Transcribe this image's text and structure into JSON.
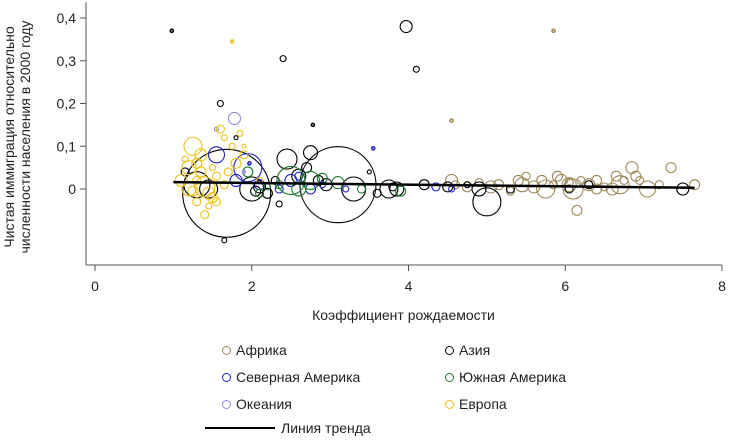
{
  "chart_data": {
    "type": "scatter",
    "xlabel": "Коэффициент рождаемости",
    "ylabel_lines": [
      "Чистая иммиграция относительно",
      "численности населения в 2000 году"
    ],
    "xlim": [
      0,
      8
    ],
    "ylim": [
      -0.14,
      0.42
    ],
    "x_ticks": [
      0,
      2,
      4,
      6,
      8
    ],
    "x_tick_labels": [
      "0",
      "2",
      "4",
      "6",
      "8"
    ],
    "y_ticks": [
      0,
      0.1,
      0.2,
      0.3,
      0.4
    ],
    "y_tick_labels": [
      "0",
      "0,1",
      "0,2",
      "0,3",
      "0,4"
    ],
    "grid": false,
    "legend_position": "bottom",
    "series": [
      {
        "name": "Африка",
        "color": "#9c8758",
        "points": [
          [
            4.55,
            0.02
          ],
          [
            4.6,
            0.01
          ],
          [
            4.75,
            0.005
          ],
          [
            4.9,
            0.015
          ],
          [
            5.05,
            0.005
          ],
          [
            5.15,
            0.01
          ],
          [
            5.3,
            -0.005
          ],
          [
            5.4,
            0.02
          ],
          [
            5.45,
            0.01
          ],
          [
            5.5,
            0.03
          ],
          [
            5.6,
            0.005
          ],
          [
            5.7,
            0.02
          ],
          [
            5.75,
            0.0
          ],
          [
            5.85,
            0.01
          ],
          [
            5.9,
            0.03
          ],
          [
            5.95,
            0.02
          ],
          [
            6.05,
            0.01
          ],
          [
            6.1,
            0.0
          ],
          [
            6.15,
            -0.05
          ],
          [
            6.2,
            0.02
          ],
          [
            6.3,
            0.01
          ],
          [
            6.4,
            0.02
          ],
          [
            6.5,
            0.005
          ],
          [
            6.6,
            0.0
          ],
          [
            6.65,
            0.03
          ],
          [
            6.7,
            0.01
          ],
          [
            6.75,
            0.02
          ],
          [
            6.85,
            0.05
          ],
          [
            6.9,
            0.03
          ],
          [
            6.95,
            0.02
          ],
          [
            7.05,
            0.0
          ],
          [
            7.2,
            0.01
          ],
          [
            7.35,
            0.05
          ],
          [
            7.5,
            0.0
          ],
          [
            7.65,
            0.01
          ],
          [
            5.85,
            0.37
          ],
          [
            4.55,
            0.16
          ],
          [
            6.05,
            0.015
          ],
          [
            6.4,
            0.0
          ]
        ],
        "sizes": [
          6,
          4,
          5,
          4,
          6,
          5,
          4,
          5,
          7,
          4,
          6,
          5,
          9,
          4,
          5,
          6,
          7,
          10,
          5,
          4,
          6,
          5,
          4,
          6,
          5,
          9,
          4,
          6,
          5,
          4,
          8,
          4,
          5,
          6,
          5,
          1.5,
          1.5,
          4,
          5
        ]
      },
      {
        "name": "Азия",
        "color": "#000000",
        "points": [
          [
            0.98,
            0.37
          ],
          [
            1.15,
            0.04
          ],
          [
            1.3,
            0.01
          ],
          [
            1.45,
            0.0
          ],
          [
            1.6,
            0.2
          ],
          [
            1.65,
            -0.12
          ],
          [
            1.8,
            0.12
          ],
          [
            1.68,
            -0.01
          ],
          [
            2.0,
            0.0
          ],
          [
            2.1,
            0.005
          ],
          [
            2.2,
            -0.01
          ],
          [
            2.3,
            0.02
          ],
          [
            2.4,
            0.305
          ],
          [
            2.45,
            0.07
          ],
          [
            2.6,
            0.03
          ],
          [
            2.7,
            0.05
          ],
          [
            2.75,
            0.085
          ],
          [
            2.78,
            0.15
          ],
          [
            2.85,
            0.02
          ],
          [
            2.95,
            0.01
          ],
          [
            3.1,
            0.01
          ],
          [
            3.3,
            0.0
          ],
          [
            3.5,
            0.04
          ],
          [
            3.6,
            -0.01
          ],
          [
            3.75,
            0.0
          ],
          [
            3.8,
            0.005
          ],
          [
            3.85,
            0.0
          ],
          [
            3.97,
            0.38
          ],
          [
            4.1,
            0.28
          ],
          [
            4.2,
            0.01
          ],
          [
            4.5,
            0.005
          ],
          [
            4.75,
            0.01
          ],
          [
            4.9,
            0.0
          ],
          [
            5.0,
            -0.03
          ],
          [
            5.3,
            0.0
          ],
          [
            6.05,
            0.0
          ],
          [
            6.3,
            0.01
          ],
          [
            7.5,
            0.0
          ],
          [
            2.05,
            -0.005
          ],
          [
            2.35,
            -0.035
          ]
        ],
        "sizes": [
          1.5,
          4,
          13,
          9,
          3,
          2.5,
          2,
          44,
          12,
          6,
          5,
          4,
          3,
          10,
          7,
          5,
          7,
          1.5,
          5,
          6,
          38,
          12,
          2,
          4,
          9,
          4,
          7,
          6,
          3,
          5,
          5,
          3,
          7,
          14,
          4,
          4,
          4,
          6,
          5,
          3
        ]
      },
      {
        "name": "Северная Америка",
        "color": "#1d20c7",
        "points": [
          [
            1.55,
            0.08
          ],
          [
            1.8,
            0.02
          ],
          [
            1.95,
            0.05
          ],
          [
            2.1,
            0.01
          ],
          [
            2.35,
            0.0
          ],
          [
            2.5,
            0.02
          ],
          [
            2.6,
            0.03
          ],
          [
            2.75,
            0.0
          ],
          [
            2.9,
            0.01
          ],
          [
            3.2,
            0.0
          ],
          [
            3.55,
            0.095
          ],
          [
            4.35,
            0.005
          ],
          [
            4.55,
            0.0
          ],
          [
            1.97,
            0.06
          ]
        ],
        "sizes": [
          8,
          6,
          14,
          5,
          4,
          6,
          4,
          5,
          3,
          3,
          1.5,
          4,
          3,
          1.5
        ]
      },
      {
        "name": "Южная Америка",
        "color": "#1a7a2a",
        "points": [
          [
            1.95,
            0.04
          ],
          [
            2.35,
            0.01
          ],
          [
            2.5,
            0.02
          ],
          [
            2.6,
            0.0
          ],
          [
            2.75,
            0.02
          ],
          [
            2.9,
            0.025
          ],
          [
            3.1,
            0.015
          ],
          [
            3.4,
            0.0
          ],
          [
            3.9,
            -0.005
          ],
          [
            2.2,
            0.005
          ],
          [
            2.1,
            -0.01
          ]
        ],
        "sizes": [
          5,
          4,
          14,
          7,
          9,
          5,
          6,
          4,
          5,
          3,
          4
        ]
      },
      {
        "name": "Океания",
        "color": "#8a8ad8",
        "points": [
          [
            1.78,
            0.165
          ],
          [
            1.9,
            0.04
          ],
          [
            1.55,
            0.14
          ]
        ],
        "sizes": [
          6,
          1.5,
          2
        ]
      },
      {
        "name": "Европа",
        "color": "#ecc118",
        "points": [
          [
            1.1,
            0.02
          ],
          [
            1.2,
            0.05
          ],
          [
            1.25,
            0.1
          ],
          [
            1.3,
            0.06
          ],
          [
            1.35,
            0.08
          ],
          [
            1.4,
            0.005
          ],
          [
            1.45,
            -0.01
          ],
          [
            1.5,
            -0.02
          ],
          [
            1.3,
            -0.03
          ],
          [
            1.25,
            -0.005
          ],
          [
            1.55,
            0.03
          ],
          [
            1.6,
            0.14
          ],
          [
            1.65,
            0.12
          ],
          [
            1.75,
            0.1
          ],
          [
            1.8,
            0.06
          ],
          [
            1.85,
            0.13
          ],
          [
            1.9,
            0.08
          ],
          [
            1.35,
            0.04
          ],
          [
            1.4,
            -0.06
          ],
          [
            1.15,
            0.07
          ],
          [
            1.2,
            0.0
          ],
          [
            1.3,
            0.02
          ],
          [
            1.75,
            0.345
          ],
          [
            1.7,
            0.04
          ],
          [
            1.5,
            0.05
          ],
          [
            1.9,
            0.1
          ],
          [
            1.55,
            -0.03
          ],
          [
            1.45,
            -0.04
          ],
          [
            1.65,
            0.01
          ],
          [
            2.1,
            0.02
          ]
        ],
        "sizes": [
          6,
          7,
          9,
          5,
          6,
          10,
          6,
          5,
          4,
          5,
          4,
          4,
          3,
          3,
          5,
          3,
          4,
          5,
          4,
          3,
          7,
          4,
          1.5,
          4,
          3,
          2,
          4,
          3,
          4,
          3
        ]
      }
    ],
    "trend_line": {
      "name": "Линия тренда",
      "color": "#000000",
      "x": [
        1.0,
        7.65
      ],
      "y": [
        0.016,
        0.003
      ]
    }
  },
  "legend": {
    "items": [
      {
        "label": "Африка",
        "color": "#9c8758"
      },
      {
        "label": "Азия",
        "color": "#000000"
      },
      {
        "label": "Северная Америка",
        "color": "#1d20c7"
      },
      {
        "label": "Южная Америка",
        "color": "#1a7a2a"
      },
      {
        "label": "Океания",
        "color": "#8a8ad8"
      },
      {
        "label": "Европа",
        "color": "#ecc118"
      }
    ],
    "trend_label": "Линия тренда"
  }
}
